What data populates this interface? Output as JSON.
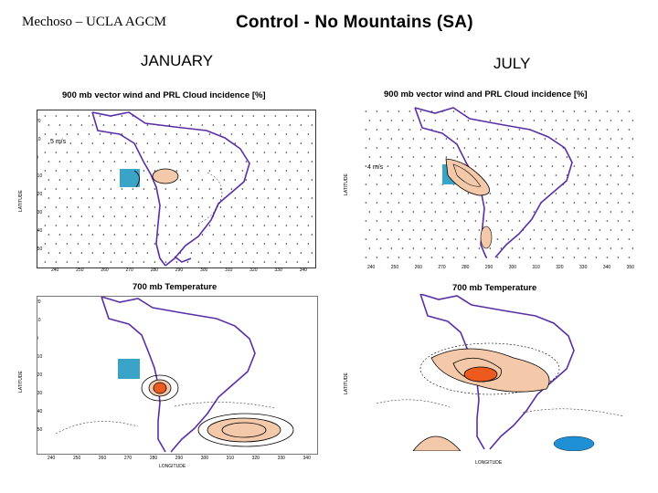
{
  "header": {
    "credit": "Mechoso – UCLA AGCM",
    "title": "Control - No Mountains (SA)"
  },
  "seasons": {
    "january": "JANUARY",
    "july": "JULY"
  },
  "panels": {
    "jan_wind": {
      "title": "900 mb vector wind and PRL Cloud incidence [%]",
      "ref_vector": "5 m/s"
    },
    "jul_wind": {
      "title": "900 mb vector wind and PRL Cloud incidence [%]",
      "ref_vector": "4 m/s"
    },
    "jan_temp": {
      "title": "700 mb Temperature"
    },
    "jul_temp": {
      "title": "700 mb Temperature"
    }
  },
  "axes": {
    "ylabel": "LATITUDE",
    "xlabel": "LONGITUDE",
    "lat_ticks": [
      "20",
      "10",
      "0",
      "-10",
      "-20",
      "-30",
      "-40",
      "-50",
      "-60"
    ],
    "lon_ticks": [
      "240",
      "250",
      "260",
      "270",
      "280",
      "290",
      "300",
      "310",
      "320",
      "330",
      "340",
      "350"
    ]
  },
  "colors": {
    "continent": "#5a2ea6",
    "positive": "#f4c9aa",
    "positive_strong": "#ec5a1e",
    "negative": "#1f8fd6",
    "mask": "#3aa3c8"
  }
}
